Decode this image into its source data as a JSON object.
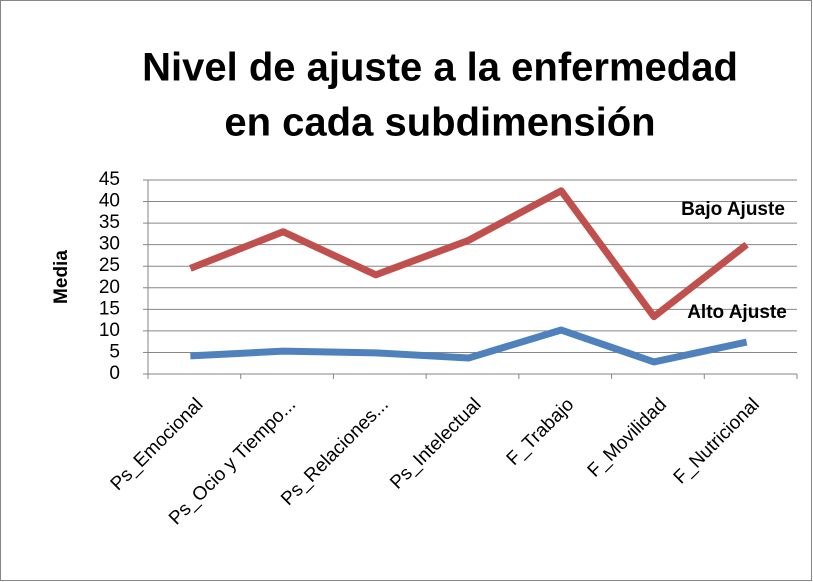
{
  "chart_data": {
    "type": "line",
    "title": [
      "Nivel de ajuste a la enfermedad",
      "en cada subdimensión"
    ],
    "y_label": "Media",
    "categories": [
      "Ps_Emocional",
      "Ps_Ocio y Tiempo...",
      "Ps_Relaciones...",
      "Ps_Intelectual",
      "F_Trabajo",
      "F_Movilidad",
      "F_Nutricional"
    ],
    "series": [
      {
        "name": "Bajo Ajuste",
        "color": "#c0504d",
        "values": [
          24.5,
          33,
          23,
          31,
          42.5,
          13.3,
          30
        ]
      },
      {
        "name": "Alto Ajuste",
        "color": "#4f81bd",
        "values": [
          4.2,
          5.3,
          4.9,
          3.7,
          10.2,
          2.8,
          7.4
        ]
      }
    ],
    "ylim": [
      0,
      45
    ],
    "yticks": [
      0,
      5,
      10,
      15,
      20,
      25,
      30,
      35,
      40,
      45
    ],
    "grid": true
  }
}
